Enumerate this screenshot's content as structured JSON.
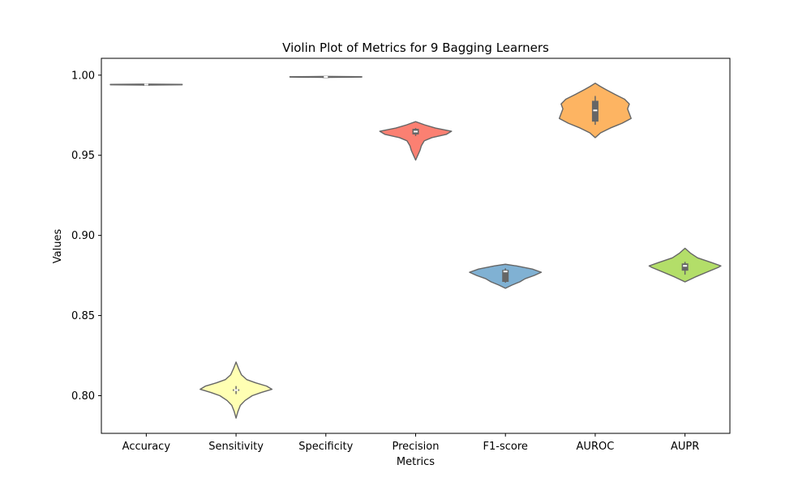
{
  "chart_data": {
    "type": "violin",
    "title": "Violin Plot of Metrics for 9 Bagging Learners",
    "xlabel": "Metrics",
    "ylabel": "Values",
    "ylim": [
      0.7765,
      1.0105
    ],
    "yticks": [
      0.8,
      0.85,
      0.9,
      0.95,
      1.0
    ],
    "ytick_labels": [
      "0.80",
      "0.85",
      "0.90",
      "0.95",
      "1.00"
    ],
    "grid": false,
    "legend": "none",
    "categories": [
      "Accuracy",
      "Sensitivity",
      "Specificity",
      "Precision",
      "F1-score",
      "AUROC",
      "AUPR"
    ],
    "series": [
      {
        "category": "Accuracy",
        "color": "#8dd3c7",
        "min": 0.9938,
        "q1": 0.994,
        "median": 0.9941,
        "q3": 0.9942,
        "max": 0.9944,
        "density": [
          [
            0.9938,
            0.0
          ],
          [
            0.994,
            1.0
          ],
          [
            0.9942,
            1.0
          ],
          [
            0.9944,
            0.0
          ]
        ]
      },
      {
        "category": "Sensitivity",
        "color": "#ffffb3",
        "min": 0.801,
        "q1": 0.803,
        "median": 0.8035,
        "q3": 0.804,
        "max": 0.806,
        "density": [
          [
            0.786,
            0.0
          ],
          [
            0.79,
            0.05
          ],
          [
            0.794,
            0.12
          ],
          [
            0.797,
            0.25
          ],
          [
            0.8,
            0.45
          ],
          [
            0.802,
            0.7
          ],
          [
            0.804,
            1.0
          ],
          [
            0.806,
            0.85
          ],
          [
            0.808,
            0.55
          ],
          [
            0.81,
            0.3
          ],
          [
            0.813,
            0.15
          ],
          [
            0.817,
            0.07
          ],
          [
            0.821,
            0.0
          ]
        ]
      },
      {
        "category": "Specificity",
        "color": "#bebada",
        "min": 0.9986,
        "q1": 0.9988,
        "median": 0.9989,
        "q3": 0.999,
        "max": 0.9992,
        "density": [
          [
            0.9986,
            0.0
          ],
          [
            0.9988,
            1.0
          ],
          [
            0.999,
            1.0
          ],
          [
            0.9992,
            0.0
          ]
        ]
      },
      {
        "category": "Precision",
        "color": "#fb8072",
        "min": 0.962,
        "q1": 0.963,
        "median": 0.9648,
        "q3": 0.9665,
        "max": 0.967,
        "density": [
          [
            0.947,
            0.0
          ],
          [
            0.95,
            0.06
          ],
          [
            0.953,
            0.12
          ],
          [
            0.956,
            0.16
          ],
          [
            0.959,
            0.24
          ],
          [
            0.961,
            0.45
          ],
          [
            0.963,
            0.85
          ],
          [
            0.965,
            1.0
          ],
          [
            0.967,
            0.55
          ],
          [
            0.969,
            0.25
          ],
          [
            0.971,
            0.0
          ]
        ]
      },
      {
        "category": "F1-score",
        "color": "#80b1d3",
        "min": 0.8705,
        "q1": 0.871,
        "median": 0.8775,
        "q3": 0.8785,
        "max": 0.8795,
        "density": [
          [
            0.867,
            0.0
          ],
          [
            0.869,
            0.18
          ],
          [
            0.871,
            0.4
          ],
          [
            0.873,
            0.55
          ],
          [
            0.875,
            0.8
          ],
          [
            0.877,
            1.0
          ],
          [
            0.879,
            0.75
          ],
          [
            0.881,
            0.3
          ],
          [
            0.882,
            0.0
          ]
        ]
      },
      {
        "category": "AUROC",
        "color": "#fdb462",
        "min": 0.969,
        "q1": 0.971,
        "median": 0.978,
        "q3": 0.984,
        "max": 0.987,
        "density": [
          [
            0.961,
            0.0
          ],
          [
            0.964,
            0.15
          ],
          [
            0.967,
            0.42
          ],
          [
            0.97,
            0.75
          ],
          [
            0.973,
            1.0
          ],
          [
            0.976,
            0.95
          ],
          [
            0.979,
            0.9
          ],
          [
            0.982,
            0.95
          ],
          [
            0.985,
            0.82
          ],
          [
            0.988,
            0.55
          ],
          [
            0.991,
            0.3
          ],
          [
            0.993,
            0.14
          ],
          [
            0.995,
            0.0
          ]
        ]
      },
      {
        "category": "AUPR",
        "color": "#b3de69",
        "min": 0.8755,
        "q1": 0.878,
        "median": 0.881,
        "q3": 0.8825,
        "max": 0.8835,
        "density": [
          [
            0.871,
            0.0
          ],
          [
            0.874,
            0.28
          ],
          [
            0.877,
            0.6
          ],
          [
            0.88,
            0.92
          ],
          [
            0.881,
            1.0
          ],
          [
            0.883,
            0.75
          ],
          [
            0.886,
            0.35
          ],
          [
            0.889,
            0.15
          ],
          [
            0.892,
            0.0
          ]
        ]
      }
    ]
  }
}
